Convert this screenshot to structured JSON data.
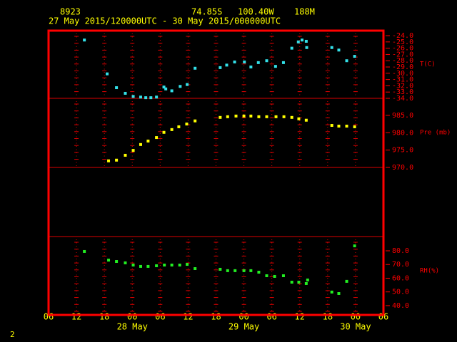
{
  "header": {
    "station": "8923",
    "lat": "74.85S",
    "lon": "100.40W",
    "elev": "188M",
    "period": "27 May 2015/120000UTC - 30 May 2015/000000UTC"
  },
  "page_number": "2",
  "chart_data": [
    {
      "type": "scatter",
      "y_label": "T(C)",
      "color": "#33e0e8",
      "ylim": [
        -34,
        -23.2
      ],
      "yticks": [
        {
          "value": -24,
          "label": "-24.0"
        },
        {
          "value": -25,
          "label": "-25.0"
        },
        {
          "value": -26,
          "label": "-26.0"
        },
        {
          "value": -27,
          "label": "-27.0"
        },
        {
          "value": -28,
          "label": "-28.0"
        },
        {
          "value": -29,
          "label": "-29.0"
        },
        {
          "value": -30,
          "label": "-30.0"
        },
        {
          "value": -31,
          "label": "-31.0"
        },
        {
          "value": -32,
          "label": "-32.0"
        },
        {
          "value": -33,
          "label": "-33.0"
        },
        {
          "value": -34,
          "label": "-34.0"
        }
      ],
      "x": [
        7.7,
        12.6,
        14.6,
        16.5,
        18.2,
        19.8,
        20.9,
        22.0,
        23.2,
        24.8,
        25.2,
        26.5,
        28.3,
        29.8,
        31.5,
        36.9,
        38.3,
        40.0,
        42.1,
        43.5,
        45.1,
        46.9,
        48.8,
        50.5,
        52.3,
        53.7,
        54.5,
        55.4,
        55.5,
        60.9,
        62.4,
        64.1,
        65.8
      ],
      "values": [
        -24.7,
        -30.1,
        -32.3,
        -33.2,
        -33.7,
        -33.8,
        -33.9,
        -33.9,
        -33.8,
        -32.2,
        -32.5,
        -32.8,
        -32.1,
        -31.8,
        -29.2,
        -29.1,
        -28.7,
        -28.2,
        -28.2,
        -29.0,
        -28.3,
        -28.0,
        -28.9,
        -28.3,
        -26.0,
        -25.0,
        -24.7,
        -24.9,
        -25.9,
        -25.9,
        -26.3,
        -28.0,
        -27.3
      ]
    },
    {
      "type": "scatter",
      "y_label": "Pre (mb)",
      "color": "#ffff00",
      "ylim": [
        970,
        989.9
      ],
      "yticks": [
        {
          "value": 970,
          "label": "970.0"
        },
        {
          "value": 975,
          "label": "975.0"
        },
        {
          "value": 980,
          "label": "980.0"
        },
        {
          "value": 985,
          "label": "985.0"
        }
      ],
      "x": [
        12.9,
        14.6,
        16.5,
        18.2,
        19.8,
        21.4,
        23.2,
        24.8,
        26.5,
        28.0,
        29.7,
        31.5,
        36.9,
        38.5,
        40.3,
        42.0,
        43.5,
        45.2,
        46.9,
        48.9,
        50.6,
        52.3,
        53.8,
        55.4,
        60.9,
        62.4,
        64.1,
        65.8
      ],
      "values": [
        971.9,
        972.1,
        973.5,
        974.9,
        976.6,
        977.6,
        978.6,
        980.1,
        980.9,
        981.7,
        982.5,
        983.4,
        984.4,
        984.6,
        984.8,
        984.8,
        984.8,
        984.6,
        984.6,
        984.6,
        984.6,
        984.4,
        984.0,
        983.6,
        982.1,
        981.9,
        981.9,
        981.7
      ]
    },
    {
      "type": "scatter",
      "y_label": "RH(%)",
      "color": "#22ee22",
      "ylim": [
        33.2,
        90.4
      ],
      "yticks": [
        {
          "value": 40,
          "label": "40.0"
        },
        {
          "value": 50,
          "label": "50.0"
        },
        {
          "value": 60,
          "label": "60.0"
        },
        {
          "value": 70,
          "label": "70.0"
        },
        {
          "value": 80,
          "label": "80.0"
        }
      ],
      "xlim": [
        0,
        72
      ],
      "xticks": [
        {
          "value": 0,
          "label": "06"
        },
        {
          "value": 6,
          "label": "12"
        },
        {
          "value": 12,
          "label": "18"
        },
        {
          "value": 18,
          "label": "00"
        },
        {
          "value": 24,
          "label": "06"
        },
        {
          "value": 30,
          "label": "12"
        },
        {
          "value": 36,
          "label": "18"
        },
        {
          "value": 42,
          "label": "00"
        },
        {
          "value": 48,
          "label": "06"
        },
        {
          "value": 54,
          "label": "12"
        },
        {
          "value": 60,
          "label": "18"
        },
        {
          "value": 66,
          "label": "00"
        },
        {
          "value": 72,
          "label": "06"
        }
      ],
      "date_ticks": [
        {
          "value": 18,
          "label": "28 May"
        },
        {
          "value": 42,
          "label": "29 May"
        },
        {
          "value": 66,
          "label": "30 May"
        }
      ],
      "x": [
        7.7,
        12.9,
        14.6,
        16.5,
        18.2,
        19.8,
        21.4,
        23.2,
        24.9,
        26.5,
        28.2,
        29.8,
        31.5,
        36.9,
        38.5,
        40.1,
        42.0,
        43.5,
        45.2,
        46.9,
        48.6,
        50.5,
        52.3,
        53.8,
        55.4,
        55.7,
        60.9,
        62.4,
        64.1,
        65.8
      ],
      "values": [
        79.5,
        73.2,
        72.2,
        71.2,
        69.6,
        68.6,
        68.6,
        69.1,
        69.6,
        69.6,
        69.6,
        70.1,
        67.0,
        66.5,
        65.5,
        65.5,
        65.5,
        65.5,
        64.4,
        61.8,
        61.3,
        61.8,
        57.1,
        57.1,
        56.1,
        58.7,
        49.9,
        48.8,
        57.7,
        83.6
      ]
    }
  ]
}
